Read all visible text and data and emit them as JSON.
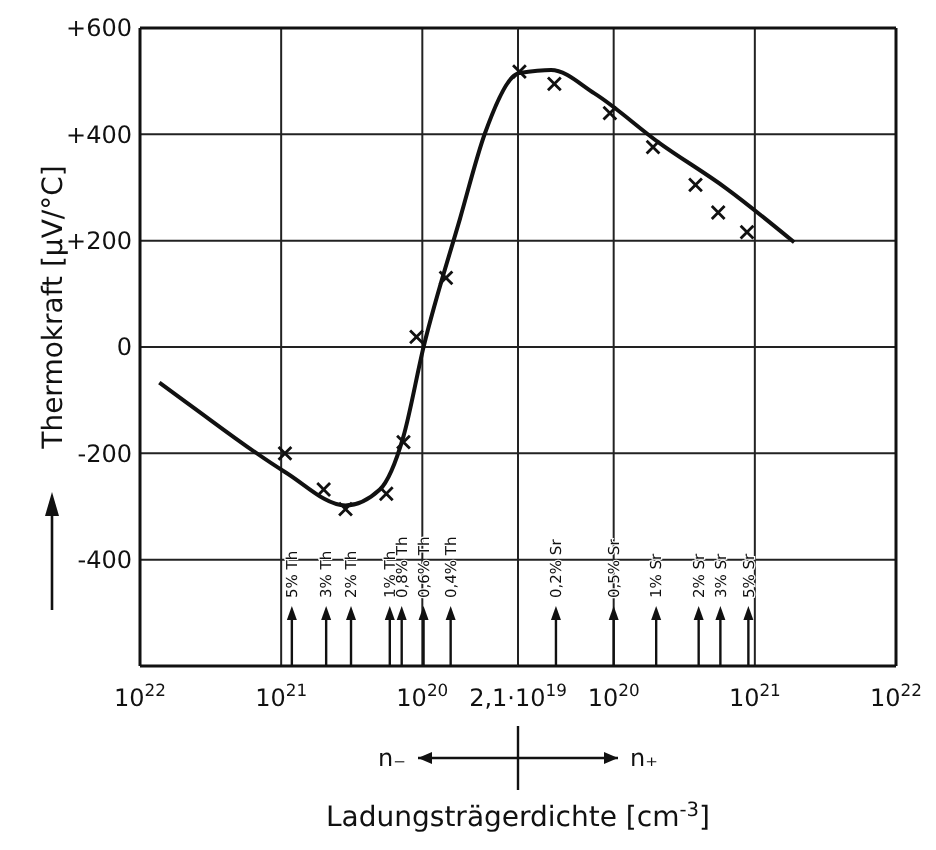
{
  "chart_data": [
    {
      "type": "line",
      "ylabel": "Thermokraft [µV/°C]",
      "log": "x",
      "xlim": [
        1e+22,
        2.1e+19
      ],
      "ylim": [
        -600,
        600
      ],
      "xticks": [
        {
          "value": 1e+22,
          "label": "10$^{22}$"
        },
        {
          "value": 1e+21,
          "label": "10$^{21}$"
        },
        {
          "value": 1e+20,
          "label": "10$^{20}$"
        }
      ],
      "yticks": [
        {
          "value": -400,
          "label": "-400"
        },
        {
          "value": -200,
          "label": "-200"
        },
        0,
        {
          "value": 200,
          "label": "+200"
        },
        {
          "value": 400,
          "label": "+400"
        },
        {
          "value": 600,
          "label": "+600"
        }
      ],
      "grid": true,
      "series": [
        {
          "type": "line",
          "color": "#111111",
          "marker": "none",
          "line_style": "solid",
          "x": [
            7.3e+21,
            4.7e+21,
            9.4e+20,
            3.5e+20,
            2e+20,
            1.36e+20,
            9.8e+19,
            5.4e+19,
            3.6e+19,
            2.25e+19,
            2.1e+19
          ],
          "values": [
            -67,
            -104,
            -235,
            -298,
            -268,
            -168,
            0,
            242,
            402,
            510,
            515
          ]
        },
        {
          "type": "scatter",
          "color": "#111111",
          "marker": "cross",
          "x": [
            9.4e+20,
            5e+20,
            3.5e+20,
            1.8e+20,
            1.36e+20,
            1.1e+20,
            6.8e+19
          ],
          "values": [
            -200,
            -268,
            -305,
            -276,
            -179,
            19,
            130
          ]
        }
      ],
      "ref_lines": [
        {
          "axis": "x",
          "value": 8.4e+20,
          "label": "5% Th"
        },
        {
          "axis": "x",
          "value": 4.8e+20,
          "label": "3% Th"
        },
        {
          "axis": "x",
          "value": 3.2e+20,
          "label": "2% Th"
        },
        {
          "axis": "x",
          "value": 1.7e+20,
          "label": "1% Th"
        },
        {
          "axis": "x",
          "value": 1.4e+20,
          "label": "0,8% Th"
        },
        {
          "axis": "x",
          "value": 9.8e+19,
          "label": "0,6% Th"
        },
        {
          "axis": "x",
          "value": 6.3e+19,
          "label": "0,4% Th"
        }
      ],
      "annotations": [
        "n₋"
      ]
    },
    {
      "type": "line",
      "xlabel": "Ladungsträgerdichte [cm$^{-3}$]",
      "log": "x",
      "tick_labels": "x",
      "xlim": [
        2.1e+19,
        1e+22
      ],
      "ylim": [
        -600,
        600
      ],
      "xticks": [
        {
          "value": 2.1e+19,
          "label": "2,1·10$^{19}$"
        },
        {
          "value": 1e+20,
          "label": "10$^{20}$"
        },
        {
          "value": 1e+21,
          "label": "10$^{21}$"
        },
        {
          "value": 1e+22,
          "label": "10$^{22}$"
        }
      ],
      "yticks": [
        -400,
        -200,
        0,
        200,
        400,
        600
      ],
      "grid": true,
      "series": [
        {
          "type": "line",
          "color": "#111111",
          "marker": "none",
          "line_style": "solid",
          "x": [
            2.1e+19,
            3.6e+19,
            7.3e+19,
            2.1e+20,
            6.3e+20,
            1.9e+21
          ],
          "values": [
            515,
            521,
            477,
            384,
            298,
            197
          ]
        },
        {
          "type": "scatter",
          "color": "#111111",
          "marker": "cross",
          "x": [
            2.15e+19,
            3.8e+19,
            9.4e+19,
            1.9e+20,
            3.8e+20,
            5.5e+20,
            8.8e+20
          ],
          "values": [
            518,
            495,
            440,
            376,
            305,
            253,
            216
          ]
        }
      ],
      "ref_lines": [
        {
          "axis": "x",
          "value": 3.9e+19,
          "label": "0,2% Sr"
        },
        {
          "axis": "x",
          "value": 1e+20,
          "label": "0,5% Sr"
        },
        {
          "axis": "x",
          "value": 2e+20,
          "label": "1% Sr"
        },
        {
          "axis": "x",
          "value": 4e+20,
          "label": "2% Sr"
        },
        {
          "axis": "x",
          "value": 5.7e+20,
          "label": "3% Sr"
        },
        {
          "axis": "x",
          "value": 9e+20,
          "label": "5% Sr"
        }
      ],
      "annotations": [
        "n₊"
      ]
    }
  ]
}
